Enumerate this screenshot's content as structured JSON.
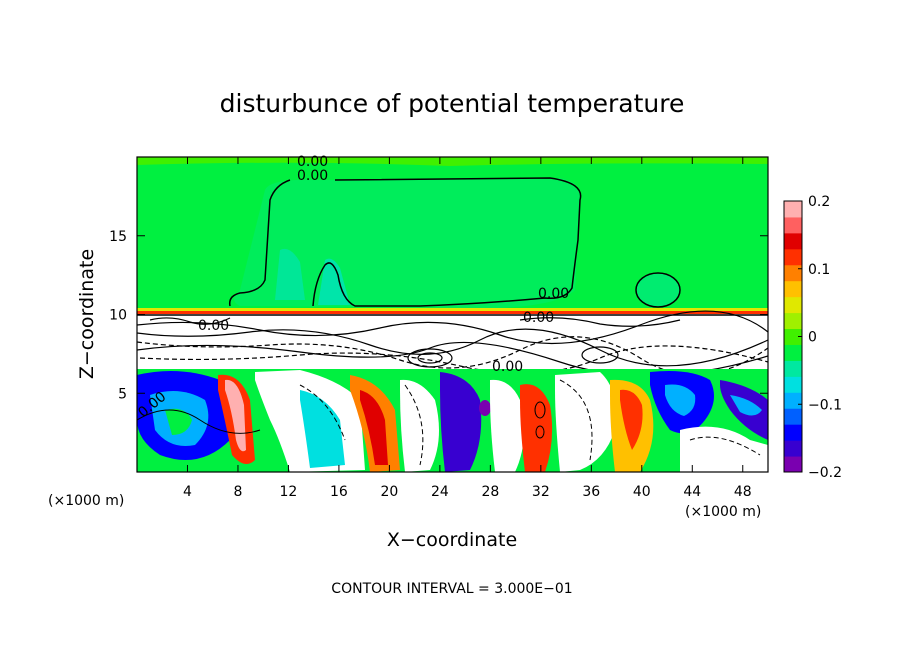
{
  "chart_data": {
    "type": "heatmap",
    "title": "disturbunce of potential temperature",
    "xlabel": "X−coordinate",
    "ylabel": "Z−coordinate",
    "x_unit_label": "(×1000 m)",
    "z_unit_label": "(×1000 m)",
    "xlim": [
      0,
      50
    ],
    "ylim": [
      0,
      20
    ],
    "x_ticks": [
      4,
      8,
      12,
      16,
      20,
      24,
      28,
      32,
      36,
      40,
      44,
      48
    ],
    "x_tick_labels": [
      "4",
      "8",
      "12",
      "16",
      "20",
      "24",
      "28",
      "32",
      "36",
      "40",
      "44",
      "48"
    ],
    "y_ticks": [
      5,
      10,
      15
    ],
    "y_tick_labels": [
      "5",
      "10",
      "15"
    ],
    "colorbar": {
      "range": [
        -0.2,
        0.2
      ],
      "ticks": [
        0.2,
        0.1,
        0,
        -0.1,
        -0.2
      ],
      "tick_labels": [
        "0.2",
        "0.1",
        "0",
        "−0.1",
        "−0.2"
      ],
      "colors": [
        "#7a00b0",
        "#3800d0",
        "#0000ff",
        "#0060ff",
        "#00b0ff",
        "#00e0e0",
        "#00e8a0",
        "#00f040",
        "#40f000",
        "#a0f000",
        "#e0e800",
        "#ffc000",
        "#ff8000",
        "#ff3000",
        "#e00000",
        "#ff6060",
        "#ffb0b0"
      ]
    },
    "contour_labels": [
      "0.00",
      "0.00",
      "0.00",
      "0.00",
      "0.00",
      "0.00",
      "0.00"
    ],
    "contour_interval_text": "CONTOUR INTERVAL = 3.000E−01",
    "regions": {
      "upper_layer": {
        "z_range": [
          10,
          20
        ],
        "value": 0.0
      },
      "turbulent_band": {
        "z_range": [
          6.5,
          10
        ]
      },
      "lower_layer": {
        "z_range": [
          0,
          6.5
        ]
      }
    }
  }
}
